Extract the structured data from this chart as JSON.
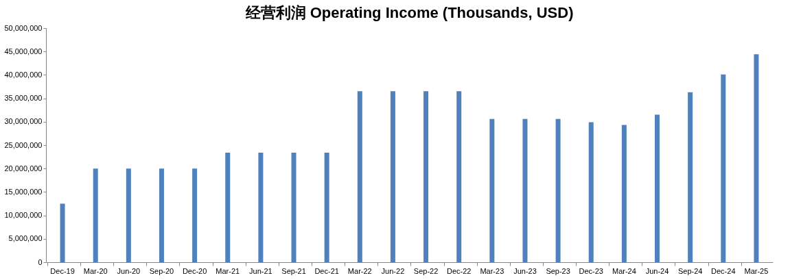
{
  "chart_data": {
    "type": "bar",
    "title": "经营利润 Operating Income (Thousands, USD)",
    "categories": [
      "Dec-19",
      "Mar-20",
      "Jun-20",
      "Sep-20",
      "Dec-20",
      "Mar-21",
      "Jun-21",
      "Sep-21",
      "Dec-21",
      "Mar-22",
      "Jun-22",
      "Sep-22",
      "Dec-22",
      "Mar-23",
      "Jun-23",
      "Sep-23",
      "Dec-23",
      "Mar-24",
      "Jun-24",
      "Sep-24",
      "Dec-24",
      "Mar-25"
    ],
    "values": [
      12500000,
      20000000,
      20000000,
      20000000,
      20000000,
      23400000,
      23400000,
      23400000,
      23400000,
      36500000,
      36500000,
      36500000,
      36500000,
      30600000,
      30600000,
      30600000,
      29900000,
      29300000,
      31500000,
      36300000,
      40100000,
      44400000
    ],
    "color": "#4f81bd",
    "ylim": [
      0,
      50000000
    ],
    "yticks": [
      {
        "value": 0,
        "label": "0"
      },
      {
        "value": 5000000,
        "label": "5,000,000"
      },
      {
        "value": 10000000,
        "label": "10,000,000"
      },
      {
        "value": 15000000,
        "label": "15,000,000"
      },
      {
        "value": 20000000,
        "label": "20,000,000"
      },
      {
        "value": 25000000,
        "label": "25,000,000"
      },
      {
        "value": 30000000,
        "label": "30,000,000"
      },
      {
        "value": 35000000,
        "label": "35,000,000"
      },
      {
        "value": 40000000,
        "label": "40,000,000"
      },
      {
        "value": 45000000,
        "label": "45,000,000"
      },
      {
        "value": 50000000,
        "label": "50,000,000"
      }
    ],
    "grid": false
  }
}
